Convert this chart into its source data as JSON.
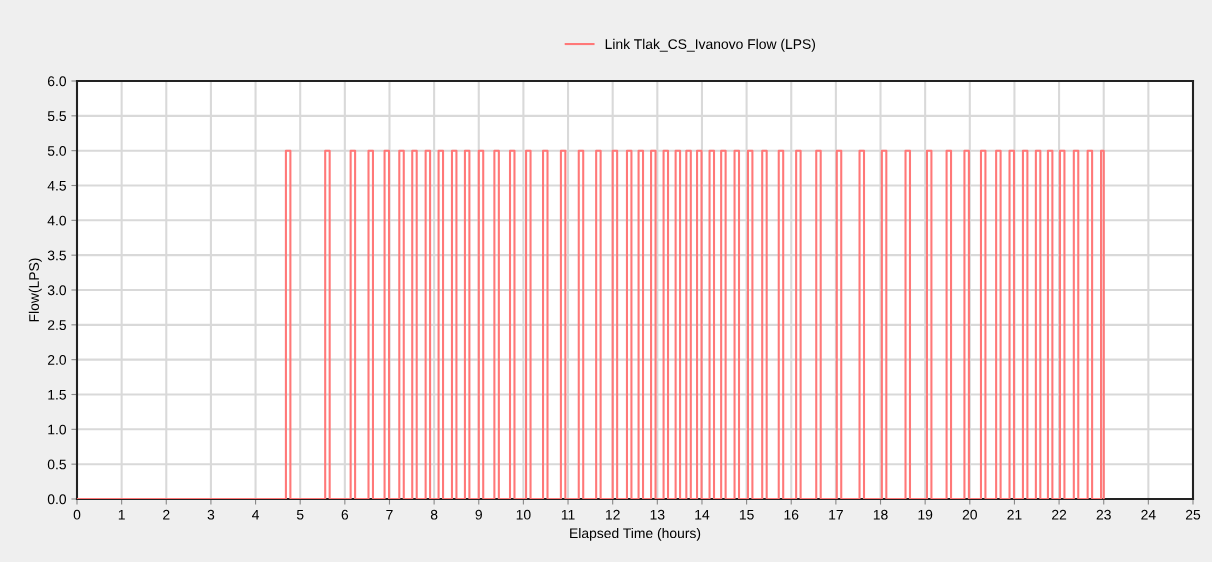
{
  "chart_data": {
    "type": "step",
    "xlabel": "Elapsed Time (hours)",
    "ylabel": "Flow(LPS)",
    "xlim": [
      0,
      25
    ],
    "xticks": [
      0,
      1,
      2,
      3,
      4,
      5,
      6,
      7,
      8,
      9,
      10,
      11,
      12,
      13,
      14,
      15,
      16,
      17,
      18,
      19,
      20,
      21,
      22,
      23,
      24,
      25
    ],
    "ylim": [
      0,
      6
    ],
    "yticks": [
      {
        "value": 0,
        "label": "0.0"
      },
      {
        "value": 0.5,
        "label": "0.5"
      },
      {
        "value": 1,
        "label": "1.0"
      },
      {
        "value": 1.5,
        "label": "1.5"
      },
      {
        "value": 2,
        "label": "2.0"
      },
      {
        "value": 2.5,
        "label": "2.5"
      },
      {
        "value": 3,
        "label": "3.0"
      },
      {
        "value": 3.5,
        "label": "3.5"
      },
      {
        "value": 4,
        "label": "4.0"
      },
      {
        "value": 4.5,
        "label": "4.5"
      },
      {
        "value": 5,
        "label": "5.0"
      },
      {
        "value": 5.5,
        "label": "5.5"
      },
      {
        "value": 6,
        "label": "6.0"
      }
    ],
    "grid": true,
    "legend": "top",
    "marker": "none",
    "line_style": "solid",
    "series": [
      {
        "name": "Link Tlak_CS_Ivanovo Flow (LPS)",
        "color": "#ff7878",
        "x": [
          0,
          4.68,
          4.78,
          5.56,
          5.66,
          6.13,
          6.23,
          6.53,
          6.63,
          6.89,
          6.99,
          7.22,
          7.32,
          7.51,
          7.61,
          7.81,
          7.91,
          8.1,
          8.2,
          8.4,
          8.5,
          8.69,
          8.79,
          9.0,
          9.1,
          9.35,
          9.45,
          9.7,
          9.8,
          10.06,
          10.16,
          10.44,
          10.54,
          10.84,
          10.94,
          11.24,
          11.34,
          11.63,
          11.73,
          12.0,
          12.1,
          12.32,
          12.42,
          12.58,
          12.68,
          12.86,
          12.96,
          13.14,
          13.24,
          13.41,
          13.51,
          13.65,
          13.75,
          13.89,
          13.99,
          14.17,
          14.27,
          14.43,
          14.53,
          14.73,
          14.83,
          15.03,
          15.13,
          15.35,
          15.45,
          15.72,
          15.82,
          16.11,
          16.21,
          16.56,
          16.66,
          17.02,
          17.12,
          17.53,
          17.63,
          18.03,
          18.13,
          18.56,
          18.66,
          19.04,
          19.14,
          19.48,
          19.58,
          19.88,
          19.98,
          20.25,
          20.35,
          20.59,
          20.69,
          20.89,
          20.99,
          21.19,
          21.29,
          21.48,
          21.58,
          21.75,
          21.85,
          22.02,
          22.12,
          22.33,
          22.43,
          22.64,
          22.74,
          22.94,
          23.0
        ],
        "values": [
          0,
          5,
          0,
          5,
          0,
          5,
          0,
          5,
          0,
          5,
          0,
          5,
          0,
          5,
          0,
          5,
          0,
          5,
          0,
          5,
          0,
          5,
          0,
          5,
          0,
          5,
          0,
          5,
          0,
          5,
          0,
          5,
          0,
          5,
          0,
          5,
          0,
          5,
          0,
          5,
          0,
          5,
          0,
          5,
          0,
          5,
          0,
          5,
          0,
          5,
          0,
          5,
          0,
          5,
          0,
          5,
          0,
          5,
          0,
          5,
          0,
          5,
          0,
          5,
          0,
          5,
          0,
          5,
          0,
          5,
          0,
          5,
          0,
          5,
          0,
          5,
          0,
          5,
          0,
          5,
          0,
          5,
          0,
          5,
          0,
          5,
          0,
          5,
          0,
          5,
          0,
          5,
          0,
          5,
          0,
          5,
          0,
          5,
          0,
          5,
          0,
          5,
          0,
          5,
          0
        ]
      }
    ]
  }
}
